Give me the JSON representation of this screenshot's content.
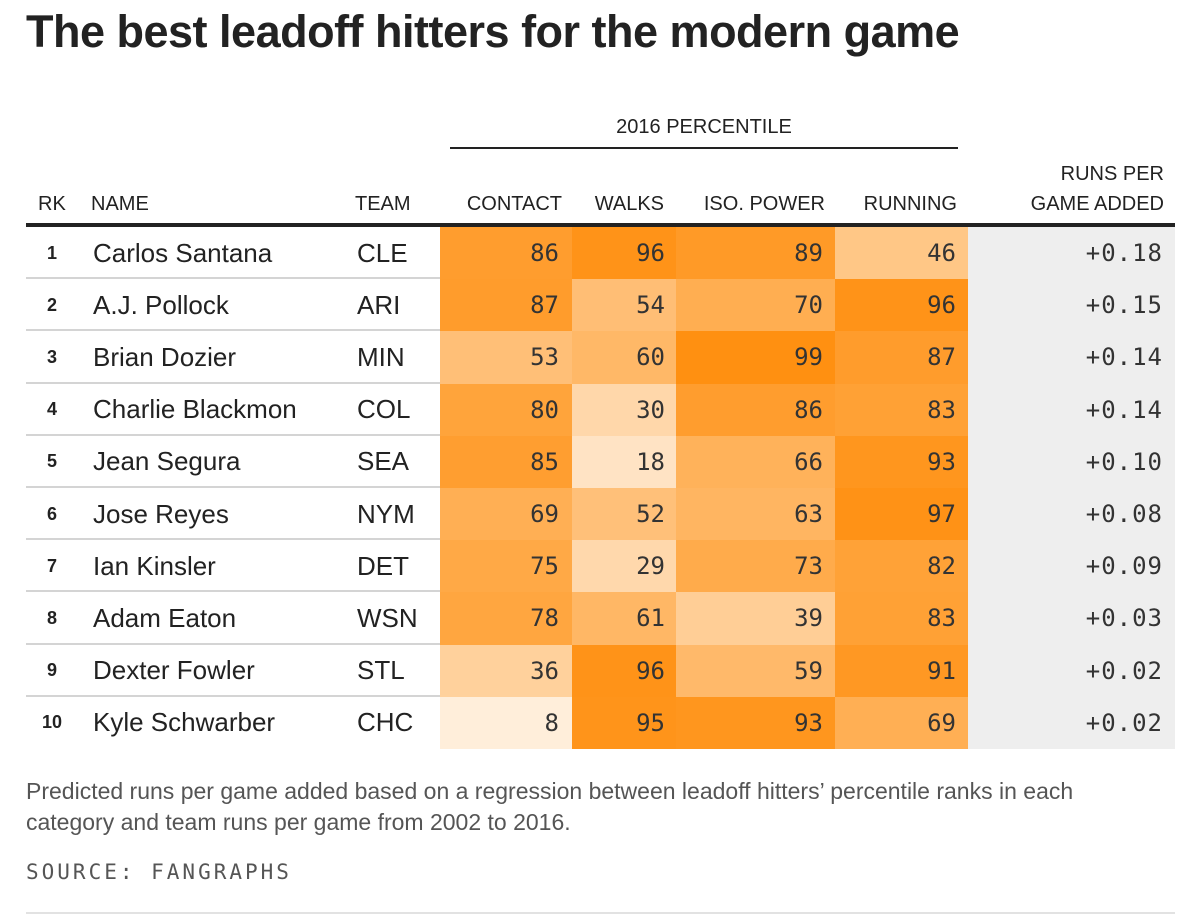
{
  "title": "The best leadoff hitters for the modern game",
  "group_label": "2016 PERCENTILE",
  "headers": {
    "rk": "RK",
    "name": "NAME",
    "team": "TEAM",
    "contact": "CONTACT",
    "walks": "WALKS",
    "iso_power": "ISO. POWER",
    "running": "RUNNING",
    "runs_line1": "RUNS PER",
    "runs_line2": "GAME ADDED"
  },
  "note": "Predicted runs per game added based on a regression between leadoff hitters’ percentile ranks in each category and team runs per game from 2002 to 2016.",
  "source": "SOURCE: FANGRAPHS",
  "colors": {
    "heat_low": "#fff6ec",
    "heat_high": "#ff8f0f",
    "runs_bg": "#eeeeee",
    "text": "#222222"
  },
  "chart_data": {
    "type": "table",
    "columns": [
      "RK",
      "NAME",
      "TEAM",
      "CONTACT",
      "WALKS",
      "ISO. POWER",
      "RUNNING",
      "RUNS PER GAME ADDED"
    ],
    "rows": [
      {
        "rk": "1",
        "name": "Carlos Santana",
        "team": "CLE",
        "contact": 86,
        "walks": 96,
        "iso_power": 89,
        "running": 46,
        "runs": "+0.18"
      },
      {
        "rk": "2",
        "name": "A.J. Pollock",
        "team": "ARI",
        "contact": 87,
        "walks": 54,
        "iso_power": 70,
        "running": 96,
        "runs": "+0.15"
      },
      {
        "rk": "3",
        "name": "Brian Dozier",
        "team": "MIN",
        "contact": 53,
        "walks": 60,
        "iso_power": 99,
        "running": 87,
        "runs": "+0.14"
      },
      {
        "rk": "4",
        "name": "Charlie Blackmon",
        "team": "COL",
        "contact": 80,
        "walks": 30,
        "iso_power": 86,
        "running": 83,
        "runs": "+0.14"
      },
      {
        "rk": "5",
        "name": "Jean Segura",
        "team": "SEA",
        "contact": 85,
        "walks": 18,
        "iso_power": 66,
        "running": 93,
        "runs": "+0.10"
      },
      {
        "rk": "6",
        "name": "Jose Reyes",
        "team": "NYM",
        "contact": 69,
        "walks": 52,
        "iso_power": 63,
        "running": 97,
        "runs": "+0.08"
      },
      {
        "rk": "7",
        "name": "Ian Kinsler",
        "team": "DET",
        "contact": 75,
        "walks": 29,
        "iso_power": 73,
        "running": 82,
        "runs": "+0.09"
      },
      {
        "rk": "8",
        "name": "Adam Eaton",
        "team": "WSN",
        "contact": 78,
        "walks": 61,
        "iso_power": 39,
        "running": 83,
        "runs": "+0.03"
      },
      {
        "rk": "9",
        "name": "Dexter Fowler",
        "team": "STL",
        "contact": 36,
        "walks": 96,
        "iso_power": 59,
        "running": 91,
        "runs": "+0.02"
      },
      {
        "rk": "10",
        "name": "Kyle Schwarber",
        "team": "CHC",
        "contact": 8,
        "walks": 95,
        "iso_power": 93,
        "running": 69,
        "runs": "+0.02"
      }
    ]
  }
}
